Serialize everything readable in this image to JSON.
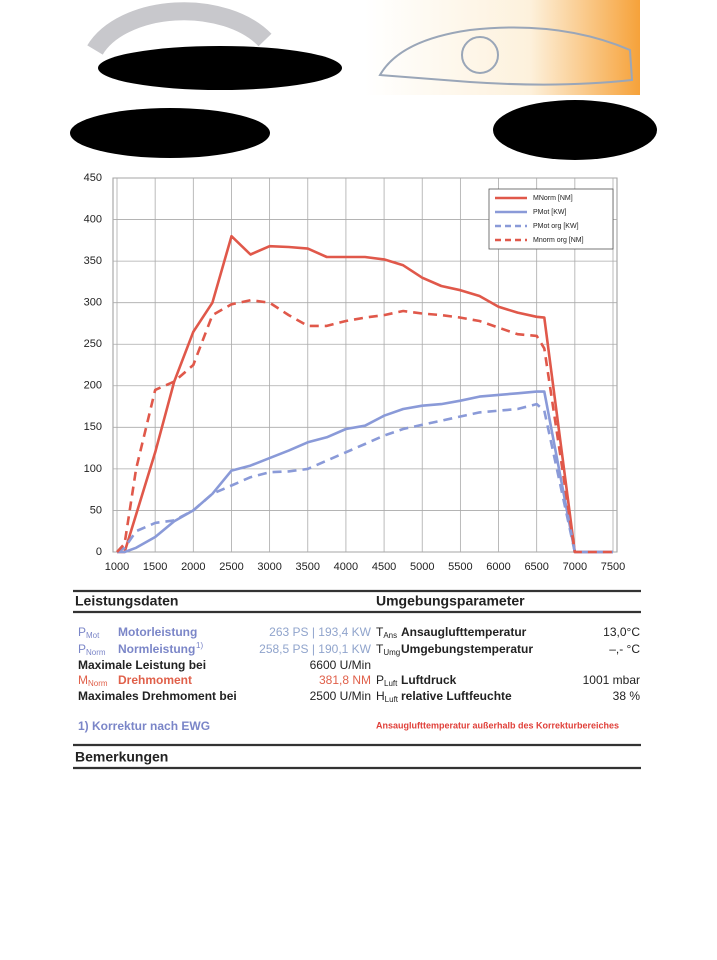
{
  "chart_data": {
    "type": "line",
    "x": [
      1000,
      1100,
      1250,
      1500,
      1750,
      2000,
      2250,
      2500,
      2750,
      3000,
      3250,
      3500,
      3750,
      4000,
      4250,
      4500,
      4750,
      5000,
      5250,
      5500,
      5750,
      6000,
      6250,
      6500,
      6600,
      7000,
      7500
    ],
    "series": [
      {
        "name": "MNorm [NM]",
        "color": "#e0584a",
        "dash": false,
        "values": [
          0,
          0,
          45,
          120,
          205,
          265,
          300,
          380,
          358,
          368,
          367,
          365,
          355,
          355,
          355,
          352,
          345,
          330,
          320,
          315,
          308,
          295,
          288,
          283,
          282,
          0,
          0
        ]
      },
      {
        "name": "PMot [KW]",
        "color": "#8a9ad8",
        "dash": false,
        "values": [
          0,
          0,
          5,
          18,
          37,
          50,
          70,
          98,
          104,
          113,
          122,
          132,
          138,
          148,
          152,
          164,
          172,
          176,
          178,
          182,
          187,
          189,
          191,
          193,
          193,
          0,
          0
        ]
      },
      {
        "name": "PMot org [KW]",
        "color": "#8a9ad8",
        "dash": true,
        "values": [
          0,
          5,
          25,
          35,
          38,
          50,
          70,
          80,
          90,
          96,
          97,
          100,
          110,
          120,
          130,
          140,
          148,
          153,
          158,
          163,
          168,
          170,
          172,
          178,
          170,
          0,
          0
        ]
      },
      {
        "name": "Mnorm org [NM]",
        "color": "#e0584a",
        "dash": true,
        "values": [
          0,
          10,
          100,
          195,
          205,
          225,
          285,
          298,
          303,
          300,
          285,
          272,
          272,
          278,
          282,
          285,
          290,
          287,
          285,
          282,
          278,
          270,
          262,
          260,
          245,
          0,
          0
        ]
      }
    ],
    "xlim": [
      1000,
      7500
    ],
    "xticks": [
      1000,
      1500,
      2000,
      2500,
      3000,
      3500,
      4000,
      4500,
      5000,
      5500,
      6000,
      6500,
      7000,
      7500
    ],
    "ylim": [
      0,
      450
    ],
    "yticks": [
      0,
      50,
      100,
      150,
      200,
      250,
      300,
      350,
      400,
      450
    ],
    "grid": true,
    "legend": "top-right"
  },
  "performance": {
    "title": "Leistungsdaten",
    "rows": [
      {
        "symbol": "P",
        "sub": "Mot",
        "label": "Motorleistung",
        "value": "263 PS | 193,4 KW",
        "color": "#7b86c8",
        "value_color": "#90a4cc"
      },
      {
        "symbol": "P",
        "sub": "Norm",
        "label": "Normleistung",
        "note": "1)",
        "value": "258,5 PS | 190,1 KW",
        "color": "#7b86c8",
        "value_color": "#90a4cc"
      },
      {
        "label": "Maximale Leistung bei",
        "value": "6600 U/Min",
        "color": "#222222",
        "value_color": "#222222"
      },
      {
        "symbol": "M",
        "sub": "Norm",
        "label": "Drehmoment",
        "value": "381,8 NM",
        "color": "#e0604a",
        "value_color": "#e0604a"
      },
      {
        "label": "Maximales Drehmoment bei",
        "value": "2500 U/Min",
        "color": "#222222",
        "value_color": "#222222"
      }
    ],
    "footnote": "1) Korrektur nach EWG"
  },
  "environment": {
    "title": "Umgebungsparameter",
    "rows": [
      {
        "symbol": "T",
        "sub": "Ans",
        "label": "Ansauglufttemperatur",
        "value": "13,0°C"
      },
      {
        "symbol": "T",
        "sub": "Umg",
        "label": "Umgebungstemperatur",
        "value": "–,- °C"
      },
      {
        "symbol": "P",
        "sub": "Luft",
        "label": "Luftdruck",
        "value": "1001  mbar"
      },
      {
        "symbol": "H",
        "sub": "Luft",
        "label": "relative Luftfeuchte",
        "value": "38 %"
      }
    ],
    "warning": "Ansauglufttemperatur außerhalb des Korrekturbereiches"
  },
  "remarks": {
    "title": "Bemerkungen"
  }
}
